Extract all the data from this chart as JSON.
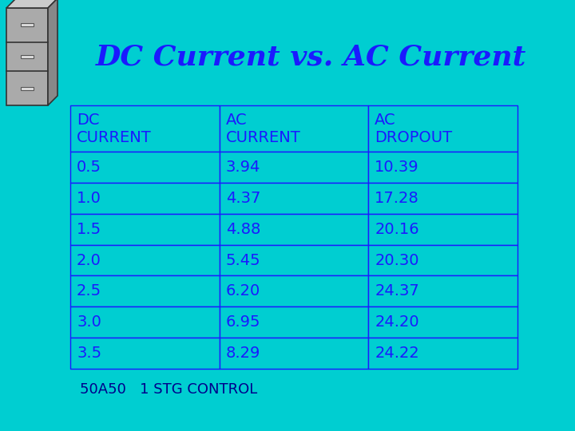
{
  "title": "DC Current vs. AC Current",
  "title_color": "#1a1aff",
  "background_color": "#00CED1",
  "table_headers": [
    "DC\nCURRENT",
    "AC\nCURRENT",
    "AC\nDROPOUT"
  ],
  "table_data": [
    [
      "0.5",
      "3.94",
      "10.39"
    ],
    [
      "1.0",
      "4.37",
      "17.28"
    ],
    [
      "1.5",
      "4.88",
      "20.16"
    ],
    [
      "2.0",
      "5.45",
      "20.30"
    ],
    [
      "2.5",
      "6.20",
      "24.37"
    ],
    [
      "3.0",
      "6.95",
      "24.20"
    ],
    [
      "3.5",
      "8.29",
      "24.22"
    ]
  ],
  "footer_text": "50A50   1 STG CONTROL",
  "footer_color": "#00008B",
  "table_text_color": "#1a1aff",
  "table_border_color": "#1a1aff",
  "cell_bg": "#00CED1",
  "cabinet_body": "#aaaaaa",
  "cabinet_top": "#cccccc",
  "cabinet_side": "#888888",
  "cabinet_edge": "#333333",
  "cabinet_handle": "#dddddd"
}
